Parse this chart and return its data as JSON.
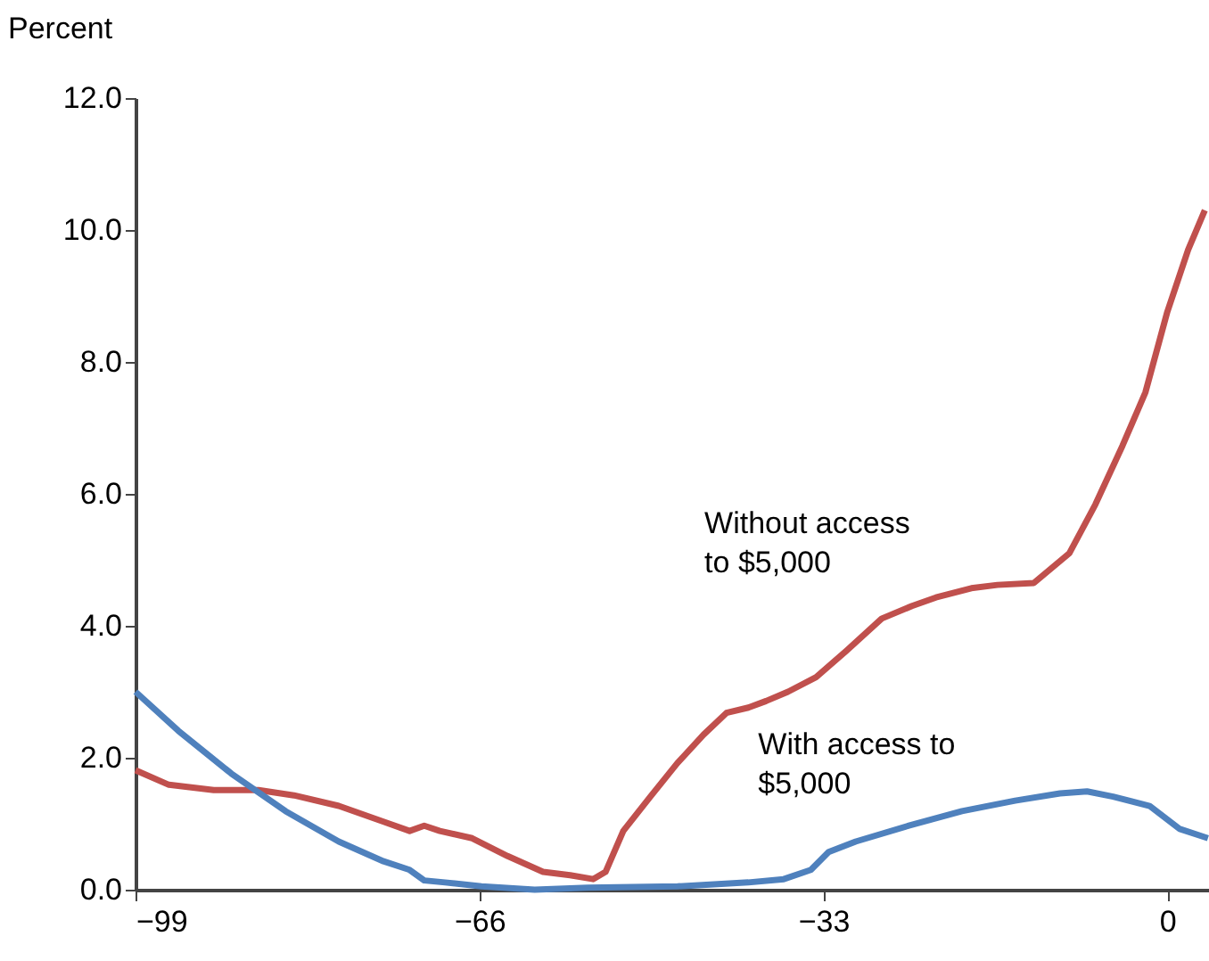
{
  "chart_data": {
    "type": "line",
    "ylabel": "Percent",
    "xlim": [
      -99,
      4
    ],
    "xticks": [
      -99,
      -66,
      -33,
      0
    ],
    "ylim": [
      0,
      12
    ],
    "yticks": [
      {
        "value": 0,
        "label": "0.0"
      },
      {
        "value": 2,
        "label": "2.0"
      },
      {
        "value": 4,
        "label": "4.0"
      },
      {
        "value": 6,
        "label": "6.0"
      },
      {
        "value": 8,
        "label": "8.0"
      },
      {
        "value": 10,
        "label": "10.0"
      },
      {
        "value": 12,
        "label": "12.0"
      }
    ],
    "grid": false,
    "legend": false,
    "line_style": "solid",
    "marker": "none",
    "series": [
      {
        "name": "Without access\nto $5,000",
        "color": "#c0504d",
        "x": [
          -99,
          -95.8,
          -91.5,
          -87.2,
          -83.8,
          -79.5,
          -75.2,
          -72.7,
          -71.3,
          -69.8,
          -66.7,
          -63.3,
          -59.9,
          -57.3,
          -55.1,
          -53.9,
          -52.2,
          -49.6,
          -47,
          -44.5,
          -42.3,
          -40.2,
          -38.5,
          -36.4,
          -33.7,
          -30.8,
          -27.4,
          -24.5,
          -22.2,
          -18.8,
          -16.3,
          -12.8,
          -9.4,
          -6.9,
          -4.3,
          -2.1,
          0,
          2,
          3.6
        ],
        "values": [
          1.81,
          1.59,
          1.51,
          1.51,
          1.43,
          1.27,
          1.03,
          0.89,
          0.97,
          0.89,
          0.78,
          0.51,
          0.27,
          0.22,
          0.16,
          0.27,
          0.89,
          1.41,
          1.92,
          2.35,
          2.68,
          2.76,
          2.86,
          3.0,
          3.22,
          3.62,
          4.11,
          4.3,
          4.43,
          4.57,
          4.62,
          4.65,
          5.1,
          5.84,
          6.73,
          7.54,
          8.76,
          9.7,
          10.3
        ]
      },
      {
        "name": "With access to\n$5,000",
        "color": "#4f81bd",
        "x": [
          -99,
          -94.9,
          -89.8,
          -84.6,
          -79.5,
          -75.2,
          -72.7,
          -71.3,
          -69.3,
          -65.8,
          -60.7,
          -55.6,
          -47,
          -40.2,
          -36.8,
          -34.2,
          -32.5,
          -29.9,
          -24.8,
          -19.7,
          -14.6,
          -10.3,
          -7.7,
          -5.2,
          -1.7,
          1.2,
          3.9
        ],
        "values": [
          3.0,
          2.41,
          1.76,
          1.19,
          0.73,
          0.43,
          0.3,
          0.14,
          0.11,
          0.05,
          0.0,
          0.03,
          0.05,
          0.11,
          0.16,
          0.3,
          0.57,
          0.73,
          0.97,
          1.19,
          1.35,
          1.46,
          1.49,
          1.41,
          1.27,
          0.92,
          0.78
        ]
      }
    ]
  }
}
